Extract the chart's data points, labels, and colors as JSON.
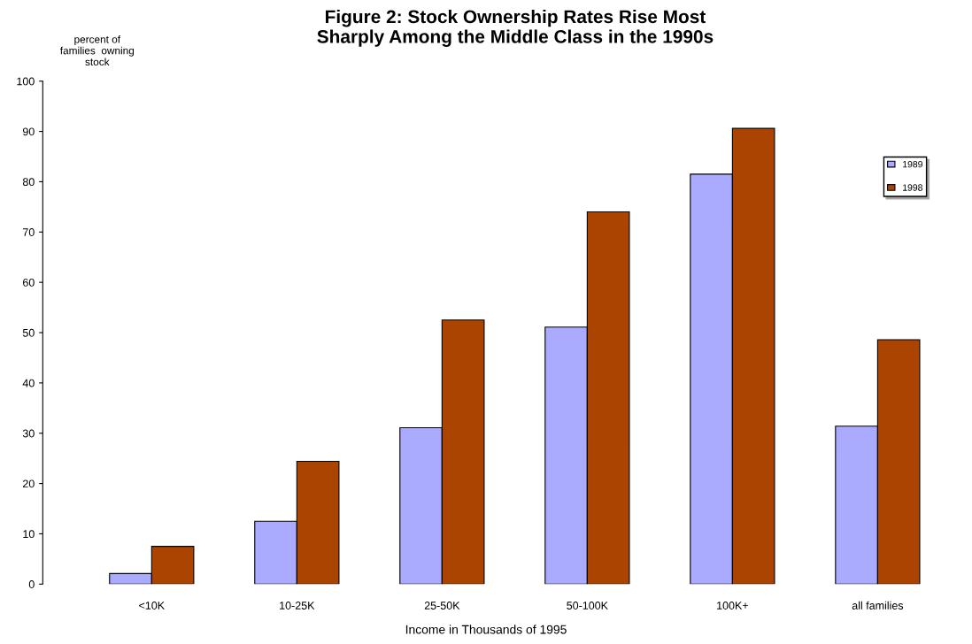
{
  "chart_data": {
    "type": "bar",
    "title": "Figure 2: Stock Ownership Rates Rise Most\nSharply Among the Middle Class in the 1990s",
    "ylabel": "percent of\nfamilies  owning\nstock",
    "xlabel": "Income in Thousands of 1995",
    "categories": [
      "<10K",
      "10-25K",
      "25-50K",
      "50-100K",
      "100K+",
      "all families"
    ],
    "series": [
      {
        "name": "1989",
        "color": "#aaaaff",
        "values": [
          2.1,
          12.5,
          31.1,
          51.1,
          81.5,
          31.4
        ]
      },
      {
        "name": "1998",
        "color": "#aa4400",
        "values": [
          7.5,
          24.4,
          52.5,
          74.0,
          90.6,
          48.6
        ]
      }
    ],
    "ylim": [
      0,
      100
    ],
    "yticks": [
      0,
      10,
      20,
      30,
      40,
      50,
      60,
      70,
      80,
      90,
      100
    ],
    "grid": false,
    "legend": "right"
  }
}
